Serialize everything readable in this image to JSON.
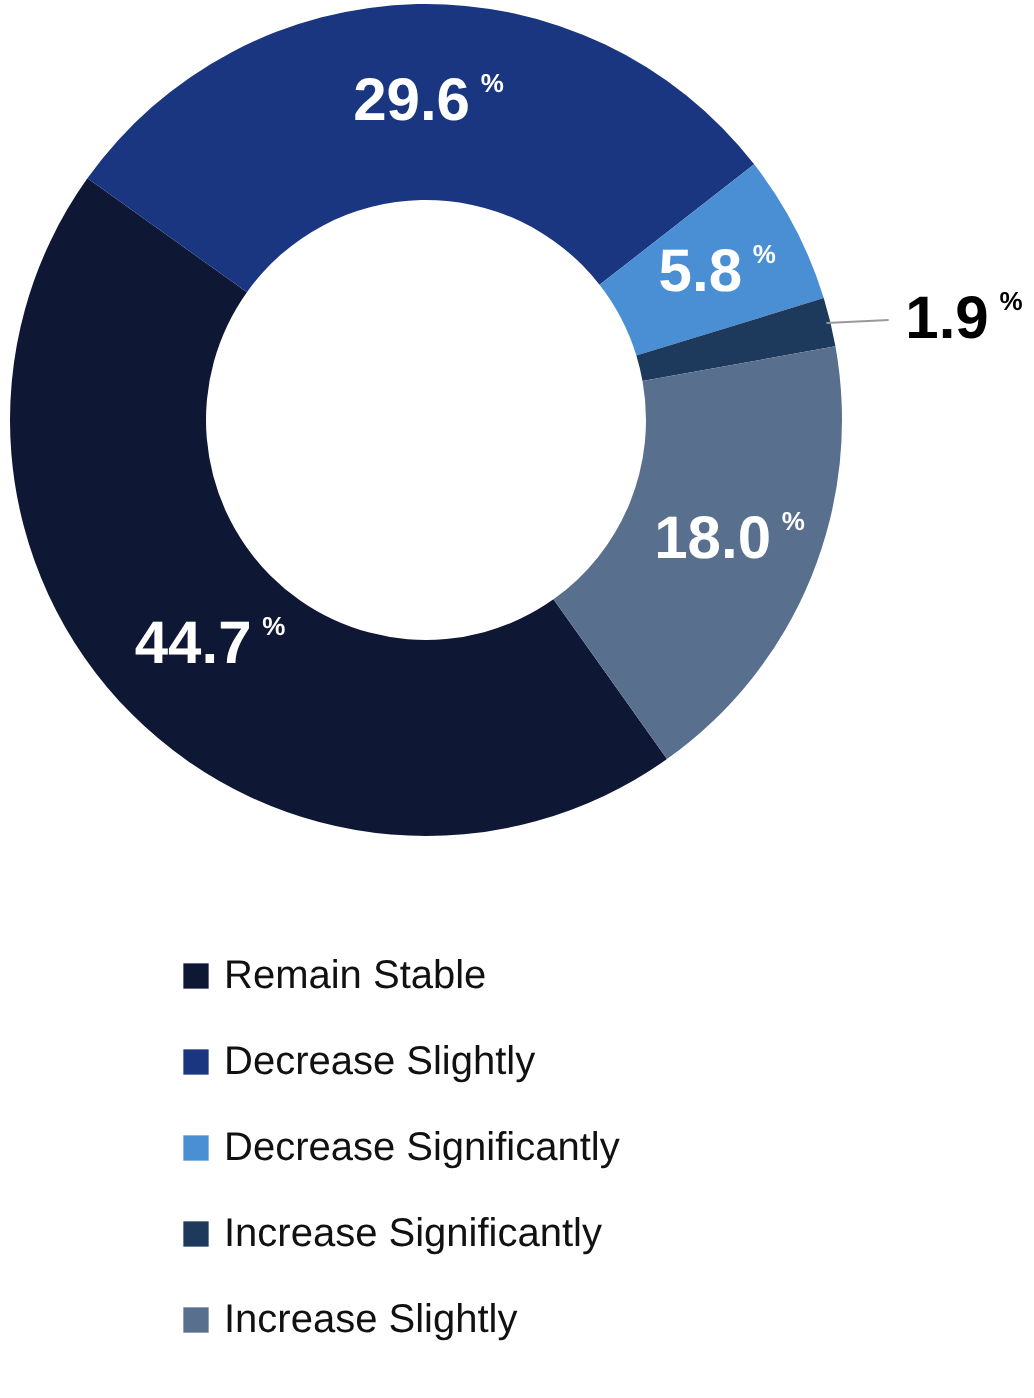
{
  "chart_data": {
    "type": "donut",
    "categories": [
      "Remain Stable",
      "Decrease Slightly",
      "Decrease Significantly",
      "Increase Significantly",
      "Increase Slightly"
    ],
    "values": [
      44.7,
      29.6,
      5.8,
      1.9,
      18.0
    ],
    "colors": [
      "#0e1733",
      "#1a3680",
      "#4a8fd4",
      "#1d3a5c",
      "#596f8e"
    ],
    "value_labels": [
      "44.7$^{%}$",
      "29.6$^{%}$",
      "5.8$^{%}$",
      "1.9$^{%}$",
      "18.0$^{%}$"
    ],
    "legend": "bottom"
  }
}
